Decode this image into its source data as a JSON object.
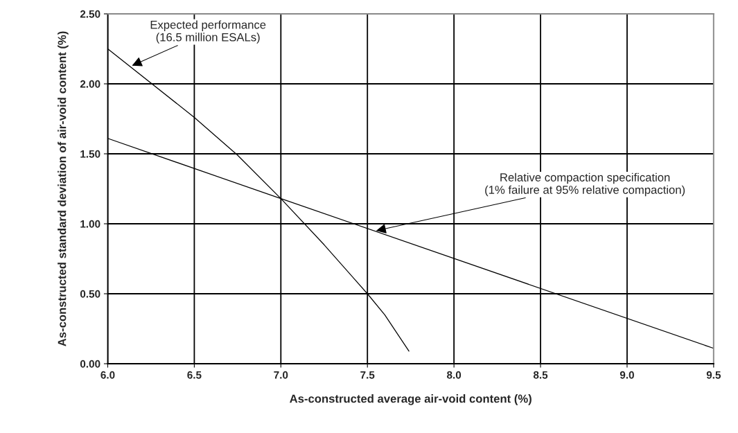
{
  "chart_data": {
    "type": "line",
    "xlabel": "As-constructed average air-void content (%)",
    "ylabel": "As-constructed standard deviation of air-void content (%)",
    "series": [
      {
        "color": "#000000",
        "x": [
          6.0,
          6.5,
          6.75,
          7.0,
          7.25,
          7.5,
          7.6,
          7.74
        ],
        "values": [
          2.25,
          1.76,
          1.49,
          1.18,
          0.85,
          0.5,
          0.35,
          0.09
        ]
      },
      {
        "color": "#000000",
        "x": [
          6.0,
          7.0,
          9.5
        ],
        "values": [
          1.61,
          1.18,
          0.11
        ]
      }
    ],
    "annotations": [
      {
        "text": "Expected performance\n(16.5 million ESALs)",
        "x": 6.14,
        "y": 2.13
      },
      {
        "text": "Relative compaction specification\n(1% failure at 95% relative compaction)",
        "x": 7.55,
        "y": 0.95
      }
    ],
    "xlim": [
      6.0,
      9.5
    ],
    "ylim": [
      0,
      2.5
    ],
    "xticks": [
      {
        "value": 6.0,
        "label": "6.0"
      },
      {
        "value": 6.5,
        "label": "6.5"
      },
      {
        "value": 7.0,
        "label": "7.0"
      },
      {
        "value": 7.5,
        "label": "7.5"
      },
      {
        "value": 8.0,
        "label": "8.0"
      },
      {
        "value": 8.5,
        "label": "8.5"
      },
      {
        "value": 9.0,
        "label": "9.0"
      },
      {
        "value": 9.5,
        "label": "9.5"
      }
    ],
    "yticks": [
      {
        "value": 0,
        "label": "0.00"
      },
      {
        "value": 0.5,
        "label": "0.50"
      },
      {
        "value": 1.0,
        "label": "1.00"
      },
      {
        "value": 1.5,
        "label": "1.50"
      },
      {
        "value": 2.0,
        "label": "2.00"
      },
      {
        "value": 2.5,
        "label": "2.50"
      }
    ],
    "grid": true,
    "marker": "none",
    "line_style": "solid"
  }
}
